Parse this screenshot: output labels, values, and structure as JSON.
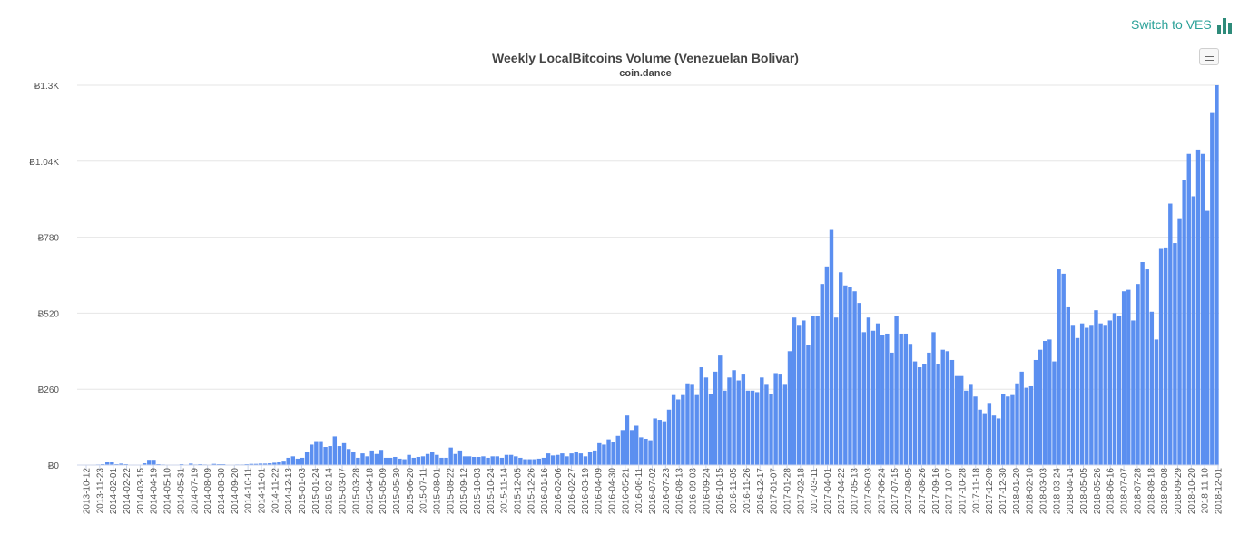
{
  "header": {
    "switch_label": "Switch to VES",
    "switch_icon": "bar-chart-icon",
    "menu_icon": "hamburger-menu-icon"
  },
  "colors": {
    "bar": "#5b8ff0",
    "grid": "#e6e6e6",
    "accent": "#2aa198"
  },
  "chart_data": {
    "type": "bar",
    "title": "Weekly LocalBitcoins Volume (Venezuelan Bolivar)",
    "subtitle": "coin.dance",
    "xlabel": "",
    "ylabel": "",
    "ylim": [
      0,
      1300
    ],
    "y_ticks": [
      "Ƀ0",
      "Ƀ260",
      "Ƀ520",
      "Ƀ780",
      "Ƀ1.04K",
      "Ƀ1.3K"
    ],
    "y_tick_values": [
      0,
      260,
      520,
      780,
      1040,
      1300
    ],
    "grid": true,
    "legend": "none",
    "x_tick_labels": [
      "2013-10-12",
      "2013-11-23",
      "2014-02-01",
      "2014-02-22",
      "2014-03-15",
      "2014-04-19",
      "2014-05-10",
      "2014-05-31",
      "2014-07-19",
      "2014-08-09",
      "2014-08-30",
      "2014-09-20",
      "2014-10-11",
      "2014-11-01",
      "2014-11-22",
      "2014-12-13",
      "2015-01-03",
      "2015-01-24",
      "2015-02-14",
      "2015-03-07",
      "2015-03-28",
      "2015-04-18",
      "2015-05-09",
      "2015-05-30",
      "2015-06-20",
      "2015-07-11",
      "2015-08-01",
      "2015-08-22",
      "2015-09-12",
      "2015-10-03",
      "2015-10-24",
      "2015-11-14",
      "2015-12-05",
      "2015-12-26",
      "2016-01-16",
      "2016-02-06",
      "2016-02-27",
      "2016-03-19",
      "2016-04-09",
      "2016-04-30",
      "2016-05-21",
      "2016-06-11",
      "2016-07-02",
      "2016-07-23",
      "2016-08-13",
      "2016-09-03",
      "2016-09-24",
      "2016-10-15",
      "2016-11-05",
      "2016-11-26",
      "2016-12-17",
      "2017-01-07",
      "2017-01-28",
      "2017-02-18",
      "2017-03-11",
      "2017-04-01",
      "2017-04-22",
      "2017-05-13",
      "2017-06-03",
      "2017-06-24",
      "2017-07-15",
      "2017-08-05",
      "2017-08-26",
      "2017-09-16",
      "2017-10-07",
      "2017-10-28",
      "2017-11-18",
      "2017-12-09",
      "2017-12-30",
      "2018-01-20",
      "2018-02-10",
      "2018-03-03",
      "2018-03-24",
      "2018-04-14",
      "2018-05-05",
      "2018-05-26",
      "2018-06-16",
      "2018-07-07",
      "2018-07-28",
      "2018-08-18",
      "2018-09-08",
      "2018-09-29",
      "2018-10-20",
      "2018-11-10",
      "2018-12-01"
    ],
    "values": [
      1,
      1,
      1,
      1,
      2,
      3,
      10,
      12,
      3,
      5,
      3,
      1,
      1,
      1,
      6,
      18,
      18,
      3,
      2,
      1,
      1,
      1,
      3,
      1,
      5,
      2,
      3,
      2,
      1,
      4,
      3,
      3,
      1,
      1,
      2,
      2,
      3,
      4,
      4,
      5,
      5,
      6,
      8,
      10,
      15,
      25,
      30,
      22,
      25,
      45,
      70,
      82,
      82,
      62,
      65,
      98,
      65,
      75,
      55,
      45,
      25,
      40,
      30,
      50,
      38,
      52,
      25,
      25,
      28,
      22,
      20,
      35,
      25,
      28,
      30,
      38,
      45,
      35,
      25,
      25,
      60,
      38,
      50,
      30,
      30,
      28,
      28,
      30,
      25,
      30,
      30,
      25,
      35,
      35,
      30,
      25,
      20,
      20,
      20,
      22,
      25,
      40,
      33,
      35,
      40,
      30,
      40,
      45,
      40,
      30,
      45,
      50,
      75,
      70,
      88,
      78,
      100,
      120,
      170,
      120,
      135,
      95,
      90,
      85,
      160,
      155,
      150,
      190,
      240,
      225,
      240,
      280,
      275,
      240,
      335,
      300,
      245,
      320,
      375,
      255,
      300,
      325,
      290,
      310,
      255,
      255,
      250,
      300,
      275,
      245,
      315,
      310,
      275,
      390,
      505,
      480,
      495,
      410,
      510,
      510,
      620,
      680,
      805,
      505,
      660,
      615,
      610,
      595,
      555,
      455,
      505,
      460,
      485,
      445,
      450,
      385,
      510,
      450,
      450,
      415,
      355,
      335,
      345,
      385,
      455,
      345,
      395,
      390,
      360,
      305,
      305,
      255,
      275,
      235,
      190,
      175,
      210,
      170,
      160,
      245,
      235,
      240,
      280,
      320,
      265,
      270,
      360,
      395,
      425,
      430,
      355,
      670,
      655,
      540,
      480,
      435,
      485,
      470,
      480,
      530,
      485,
      480,
      495,
      520,
      510,
      595,
      600,
      495,
      620,
      695,
      670,
      525,
      430,
      740,
      745,
      895,
      760,
      845,
      975,
      1065,
      920,
      1080,
      1065,
      870,
      1205,
      1300
    ]
  }
}
